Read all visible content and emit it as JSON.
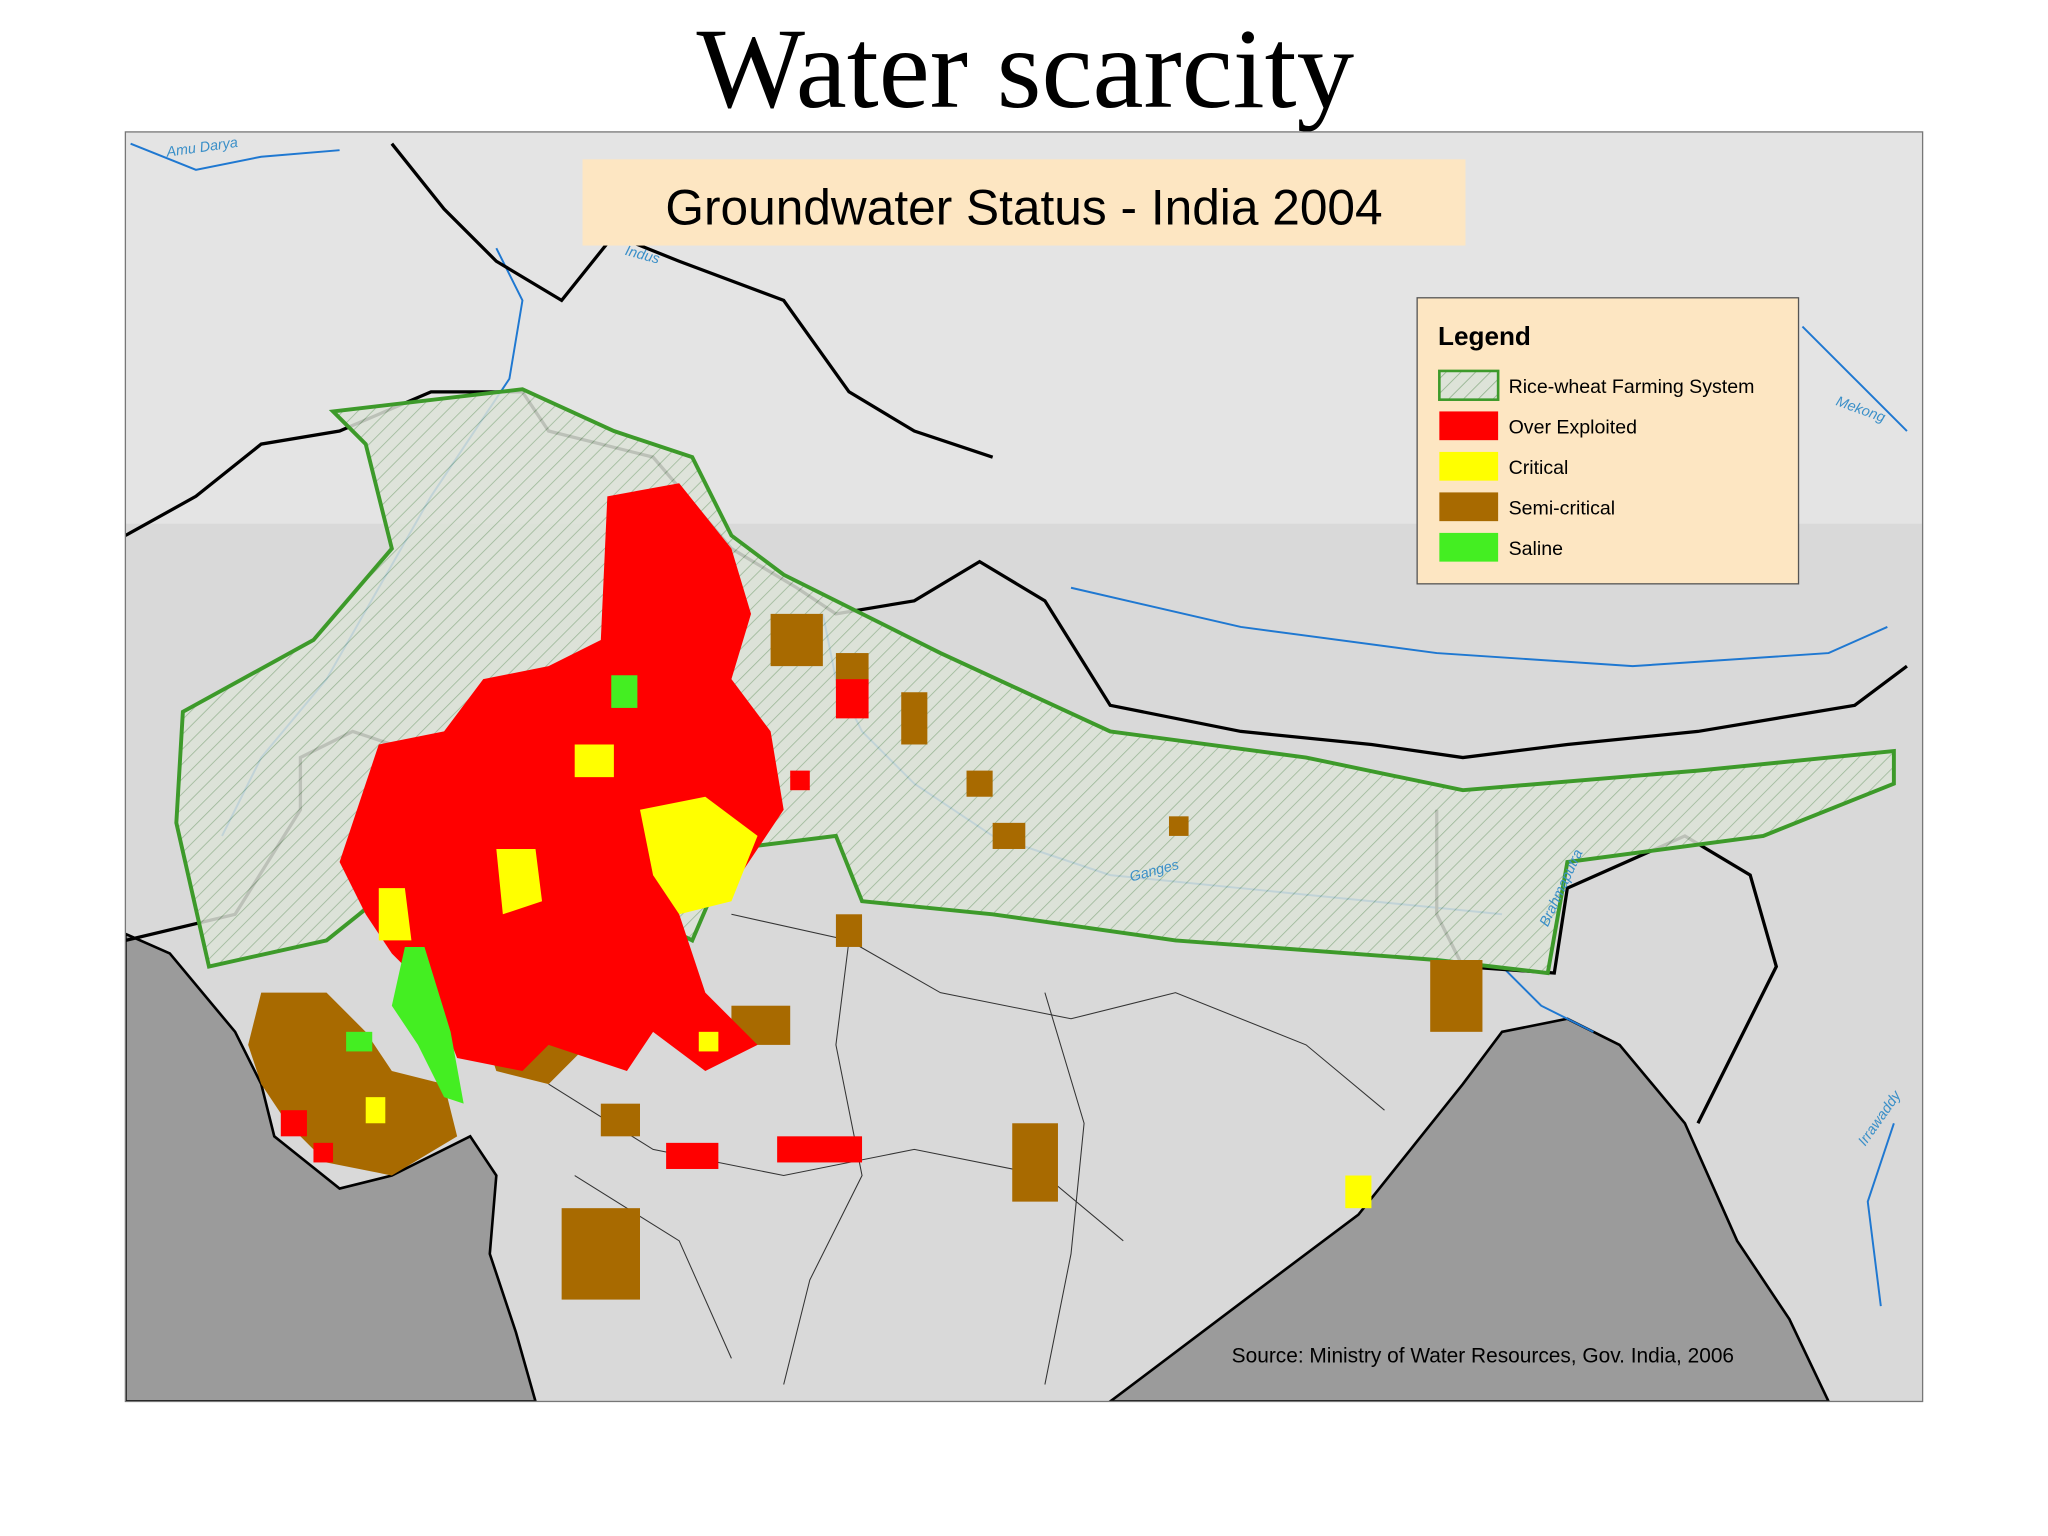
{
  "slide": {
    "title": "Water scarcity"
  },
  "map": {
    "title": "Groundwater Status - India 2004",
    "legend": {
      "title": "Legend",
      "items": [
        {
          "label": "Rice-wheat Farming System"
        },
        {
          "label": "Over Exploited"
        },
        {
          "label": "Critical"
        },
        {
          "label": "Semi-critical"
        },
        {
          "label": "Saline"
        }
      ]
    },
    "rivers": [
      "Amu Darya",
      "Indus",
      "Mekong",
      "Ganges",
      "Brahmaputra",
      "Irrawaddy"
    ],
    "source": "Source: Ministry of Water Resources, Gov. India, 2006"
  }
}
